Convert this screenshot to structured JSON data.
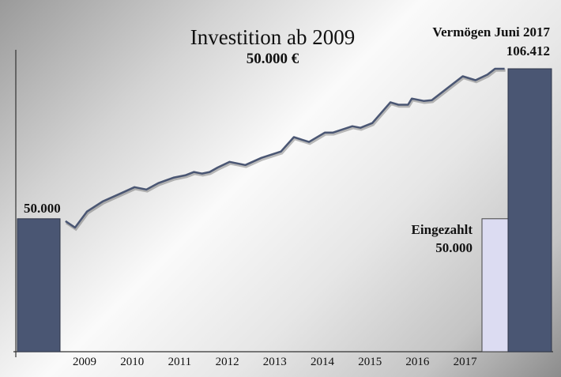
{
  "chart_data": {
    "type": "line",
    "title": "Investition ab 2009",
    "subtitle": "50.000 €",
    "xlabel": "",
    "ylabel": "",
    "x_ticks": [
      "2009",
      "2010",
      "2011",
      "2012",
      "2013",
      "2014",
      "2015",
      "2016",
      "2017"
    ],
    "ylim": [
      0,
      106412
    ],
    "grid": false,
    "start_bar": {
      "label": "50.000",
      "value": 50000,
      "color": "#4a5673"
    },
    "end_bar": {
      "label_line1": "Vermögen Juni 2017",
      "label_line2": "106.412",
      "value": 106412,
      "color": "#4a5673"
    },
    "deposit_bar": {
      "label_line1": "Eingezahlt",
      "label_line2": "50.000",
      "value": 50000,
      "color": "#dcdcf2"
    },
    "series": [
      {
        "name": "Vermögen",
        "color": "#4a5673",
        "points": [
          [
            2008.6,
            49100
          ],
          [
            2008.8,
            46700
          ],
          [
            2009.05,
            52700
          ],
          [
            2009.38,
            56500
          ],
          [
            2009.72,
            59200
          ],
          [
            2010.05,
            61900
          ],
          [
            2010.3,
            61000
          ],
          [
            2010.55,
            63400
          ],
          [
            2010.88,
            65500
          ],
          [
            2011.13,
            66400
          ],
          [
            2011.3,
            67600
          ],
          [
            2011.47,
            67000
          ],
          [
            2011.63,
            67600
          ],
          [
            2011.8,
            69300
          ],
          [
            2012.05,
            71400
          ],
          [
            2012.38,
            70200
          ],
          [
            2012.72,
            72900
          ],
          [
            2013.13,
            75300
          ],
          [
            2013.4,
            80700
          ],
          [
            2013.72,
            78900
          ],
          [
            2014.05,
            82400
          ],
          [
            2014.22,
            82400
          ],
          [
            2014.63,
            84800
          ],
          [
            2014.8,
            84200
          ],
          [
            2015.05,
            86000
          ],
          [
            2015.43,
            93800
          ],
          [
            2015.6,
            92900
          ],
          [
            2015.8,
            92900
          ],
          [
            2015.88,
            95200
          ],
          [
            2016.13,
            94300
          ],
          [
            2016.3,
            94600
          ],
          [
            2016.95,
            103600
          ],
          [
            2017.22,
            102100
          ],
          [
            2017.47,
            104200
          ],
          [
            2017.63,
            106400
          ],
          [
            2017.83,
            106412
          ]
        ]
      }
    ]
  }
}
